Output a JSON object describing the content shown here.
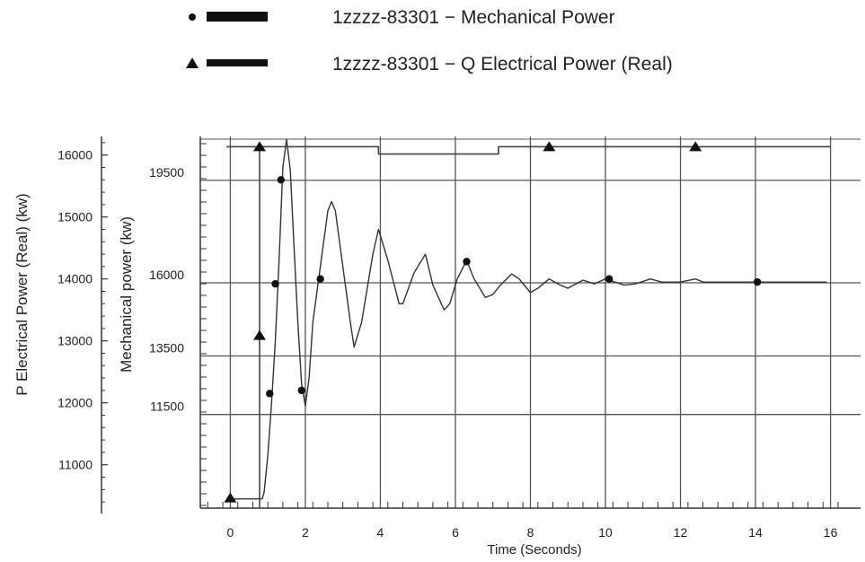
{
  "chart_data": {
    "type": "line",
    "title": "",
    "xlabel": "Time (Seconds)",
    "ylabel_left": "P Electrical Power (Real) (kw)",
    "ylabel_right": "Mechanical power (kw)",
    "xlim": [
      -0.8,
      16.8
    ],
    "ylim_left": [
      10300,
      16300
    ],
    "ylim_right": [
      8300,
      21000
    ],
    "x_ticks": [
      0,
      2,
      4,
      6,
      8,
      10,
      12,
      14,
      16
    ],
    "x_tick_labels": [
      "0",
      "2",
      "4",
      "6",
      "8",
      "10",
      "12",
      "14",
      "16"
    ],
    "left_ticks": [
      11000,
      12000,
      13000,
      14000,
      15000,
      16000
    ],
    "left_tick_labels": [
      "11000",
      "12000",
      "13000",
      "14000",
      "15000",
      "16000"
    ],
    "right_ticks": [
      11500,
      13500,
      16000,
      19500
    ],
    "right_tick_labels": [
      "11500",
      "13500",
      "16000",
      "19500"
    ],
    "grid": true,
    "legend": {
      "placement": "top",
      "entries": [
        {
          "label": "1zzzz-83301 − Mechanical Power",
          "marker": "circle"
        },
        {
          "label": "1zzzz-83301 − Q Electrical Power (Real)",
          "marker": "triangle"
        }
      ]
    },
    "series": [
      {
        "name": "1zzzz-83301 − Mechanical Power",
        "axis": "left",
        "marker": "circle",
        "color": "#333333",
        "x": [
          0,
          0.85,
          0.9,
          1.0,
          1.1,
          1.2,
          1.3,
          1.4,
          1.5,
          1.6,
          1.7,
          1.8,
          1.9,
          2.0,
          2.1,
          2.2,
          2.4,
          2.6,
          2.7,
          2.8,
          3.0,
          3.2,
          3.3,
          3.5,
          3.8,
          3.95,
          4.2,
          4.5,
          4.6,
          4.9,
          5.2,
          5.4,
          5.7,
          5.85,
          6.05,
          6.3,
          6.5,
          6.8,
          7.0,
          7.2,
          7.5,
          7.7,
          8.0,
          8.2,
          8.5,
          8.8,
          9.0,
          9.4,
          9.7,
          10.0,
          10.1,
          10.5,
          10.8,
          11.2,
          11.5,
          12.0,
          12.4,
          12.6,
          12.9,
          14.0,
          15.9
        ],
        "y": [
          10450,
          10450,
          10550,
          11150,
          12000,
          13000,
          14300,
          15800,
          16250,
          15750,
          14500,
          13300,
          12300,
          11950,
          12400,
          13300,
          14200,
          15100,
          15250,
          15100,
          14200,
          13300,
          12900,
          13300,
          14400,
          14800,
          14300,
          13600,
          13600,
          14100,
          14400,
          13900,
          13500,
          13600,
          14000,
          14300,
          14000,
          13700,
          13750,
          13900,
          14080,
          14000,
          13780,
          13850,
          14000,
          13900,
          13850,
          13980,
          13920,
          14000,
          13980,
          13900,
          13920,
          14000,
          13950,
          13950,
          14000,
          13950,
          13950,
          13950,
          13950
        ],
        "markers_x": [
          1.05,
          1.2,
          1.35,
          1.9,
          2.4,
          6.3,
          10.1,
          14.05
        ],
        "markers_y": [
          12150,
          13920,
          15600,
          12200,
          14000,
          14280,
          14000,
          13950
        ]
      },
      {
        "name": "1zzzz-83301 − Q Electrical Power (Real)",
        "axis": "right",
        "marker": "triangle",
        "color": "#444444",
        "x": [
          -0.1,
          3.95,
          3.95,
          7.15,
          7.15,
          16.0
        ],
        "y": [
          20650,
          20650,
          20400,
          20400,
          20650,
          20650
        ],
        "markers_x": [
          0,
          0.78,
          0.78,
          8.5,
          12.4
        ],
        "markers_y": [
          8650,
          14200,
          20650,
          20650,
          20650
        ]
      }
    ]
  }
}
